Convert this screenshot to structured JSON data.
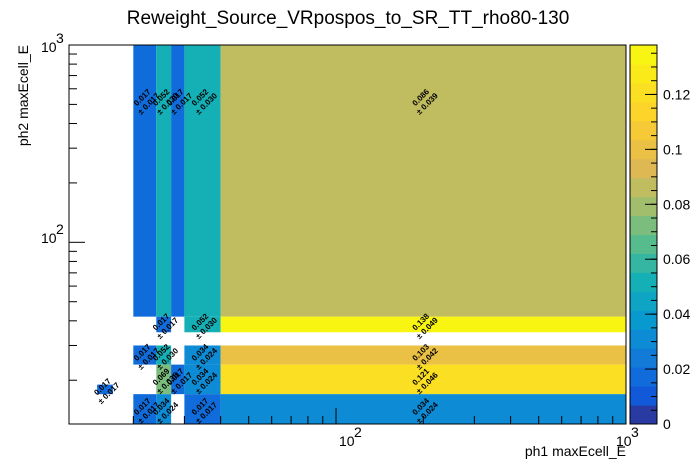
{
  "chart_data": {
    "type": "heatmap",
    "title": "Reweight_Source_VRpospos_to_SR_TT_rho80-130",
    "xlabel": "ph1 maxEcell_E",
    "ylabel": "ph2 maxEcell_E",
    "xscale": "log",
    "yscale": "log",
    "xlim": [
      12,
      1000
    ],
    "ylim": [
      12,
      1000
    ],
    "x_tick_labels": [
      "10^2",
      "10^3"
    ],
    "y_tick_labels": [
      "10^2",
      "10^3"
    ],
    "colorbar": {
      "range": [
        0,
        0.138
      ],
      "tick_values": [
        0,
        0.02,
        0.04,
        0.06,
        0.08,
        0.1,
        0.12
      ],
      "tick_labels": [
        "0",
        "0.02",
        "0.04",
        "0.06",
        "0.08",
        "0.1",
        "0.12"
      ]
    },
    "cells": [
      {
        "x": [
          15,
          17
        ],
        "y": [
          17,
          19
        ],
        "value": 0.017,
        "label": "0.017",
        "err_label": "± 0.017"
      },
      {
        "x": [
          20,
          24
        ],
        "y": [
          42,
          1000
        ],
        "value": 0.017,
        "label": "0.017",
        "err_label": "± 0.017"
      },
      {
        "x": [
          24,
          27
        ],
        "y": [
          42,
          1000
        ],
        "value": 0.052,
        "label": "0.052",
        "err_label": "± 0.030"
      },
      {
        "x": [
          27,
          30
        ],
        "y": [
          42,
          1000
        ],
        "value": 0.017,
        "label": "0.017",
        "err_label": "± 0.017"
      },
      {
        "x": [
          30,
          40
        ],
        "y": [
          42,
          1000
        ],
        "value": 0.052,
        "label": "0.052",
        "err_label": "± 0.030"
      },
      {
        "x": [
          40,
          1000
        ],
        "y": [
          42,
          1000
        ],
        "value": 0.086,
        "label": "0.086",
        "err_label": "± 0.039"
      },
      {
        "x": [
          24,
          27
        ],
        "y": [
          35,
          42
        ],
        "value": 0.017,
        "label": "0.017",
        "err_label": "± 0.017"
      },
      {
        "x": [
          30,
          40
        ],
        "y": [
          35,
          42
        ],
        "value": 0.052,
        "label": "0.052",
        "err_label": "± 0.030"
      },
      {
        "x": [
          40,
          1000
        ],
        "y": [
          35,
          42
        ],
        "value": 0.138,
        "label": "0.138",
        "err_label": "± 0.049"
      },
      {
        "x": [
          20,
          24
        ],
        "y": [
          24,
          30
        ],
        "value": 0.017,
        "label": "0.017",
        "err_label": "± 0.017"
      },
      {
        "x": [
          24,
          27
        ],
        "y": [
          24,
          30
        ],
        "value": 0.052,
        "label": "0.052",
        "err_label": "± 0.030"
      },
      {
        "x": [
          30,
          40
        ],
        "y": [
          24,
          30
        ],
        "value": 0.034,
        "label": "0.034",
        "err_label": "± 0.024"
      },
      {
        "x": [
          40,
          1000
        ],
        "y": [
          24,
          30
        ],
        "value": 0.103,
        "label": "0.103",
        "err_label": "± 0.042"
      },
      {
        "x": [
          24,
          27
        ],
        "y": [
          17,
          24
        ],
        "value": 0.069,
        "label": "0.069",
        "err_label": "± 0.035"
      },
      {
        "x": [
          27,
          30
        ],
        "y": [
          17,
          24
        ],
        "value": 0.017,
        "label": "0.017",
        "err_label": "± 0.017"
      },
      {
        "x": [
          30,
          40
        ],
        "y": [
          17,
          24
        ],
        "value": 0.034,
        "label": "0.034",
        "err_label": "± 0.024"
      },
      {
        "x": [
          40,
          1000
        ],
        "y": [
          17,
          24
        ],
        "value": 0.121,
        "label": "0.121",
        "err_label": "± 0.046"
      },
      {
        "x": [
          20,
          24
        ],
        "y": [
          12,
          17
        ],
        "value": 0.017,
        "label": "0.017",
        "err_label": "± 0.017"
      },
      {
        "x": [
          24,
          27
        ],
        "y": [
          12,
          17
        ],
        "value": 0.034,
        "label": "0.034",
        "err_label": "± 0.024"
      },
      {
        "x": [
          30,
          40
        ],
        "y": [
          12,
          17
        ],
        "value": 0.017,
        "label": "0.017",
        "err_label": "± 0.017"
      },
      {
        "x": [
          40,
          1000
        ],
        "y": [
          12,
          17
        ],
        "value": 0.034,
        "label": "0.034",
        "err_label": "± 0.024"
      }
    ]
  }
}
